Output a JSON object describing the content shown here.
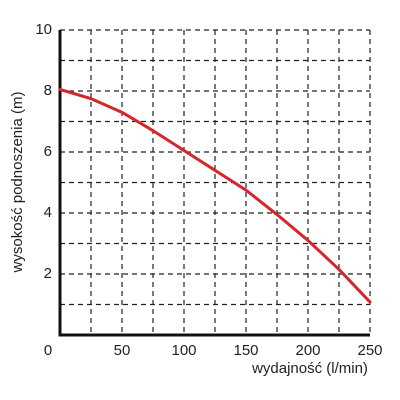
{
  "chart_data": {
    "type": "line",
    "x_label": "wydajność (l/min)",
    "y_label": "wysokość podnoszenia (m)",
    "x": [
      0,
      25,
      50,
      75,
      100,
      125,
      150,
      175,
      200,
      225,
      250
    ],
    "series": [
      {
        "color": "#d7262b",
        "values": [
          8.05,
          7.75,
          7.3,
          6.7,
          6.05,
          5.4,
          4.75,
          3.95,
          3.1,
          2.15,
          1.08
        ]
      }
    ],
    "xlim": [
      0,
      250
    ],
    "ylim": [
      0,
      10
    ],
    "xticks": [
      0,
      50,
      100,
      150,
      200,
      250
    ],
    "yticks": [
      2,
      4,
      6,
      8,
      10
    ],
    "xminor": [
      25,
      75,
      125,
      175,
      225
    ],
    "yminor": [
      1,
      3,
      5,
      7,
      9
    ],
    "grid": true
  }
}
